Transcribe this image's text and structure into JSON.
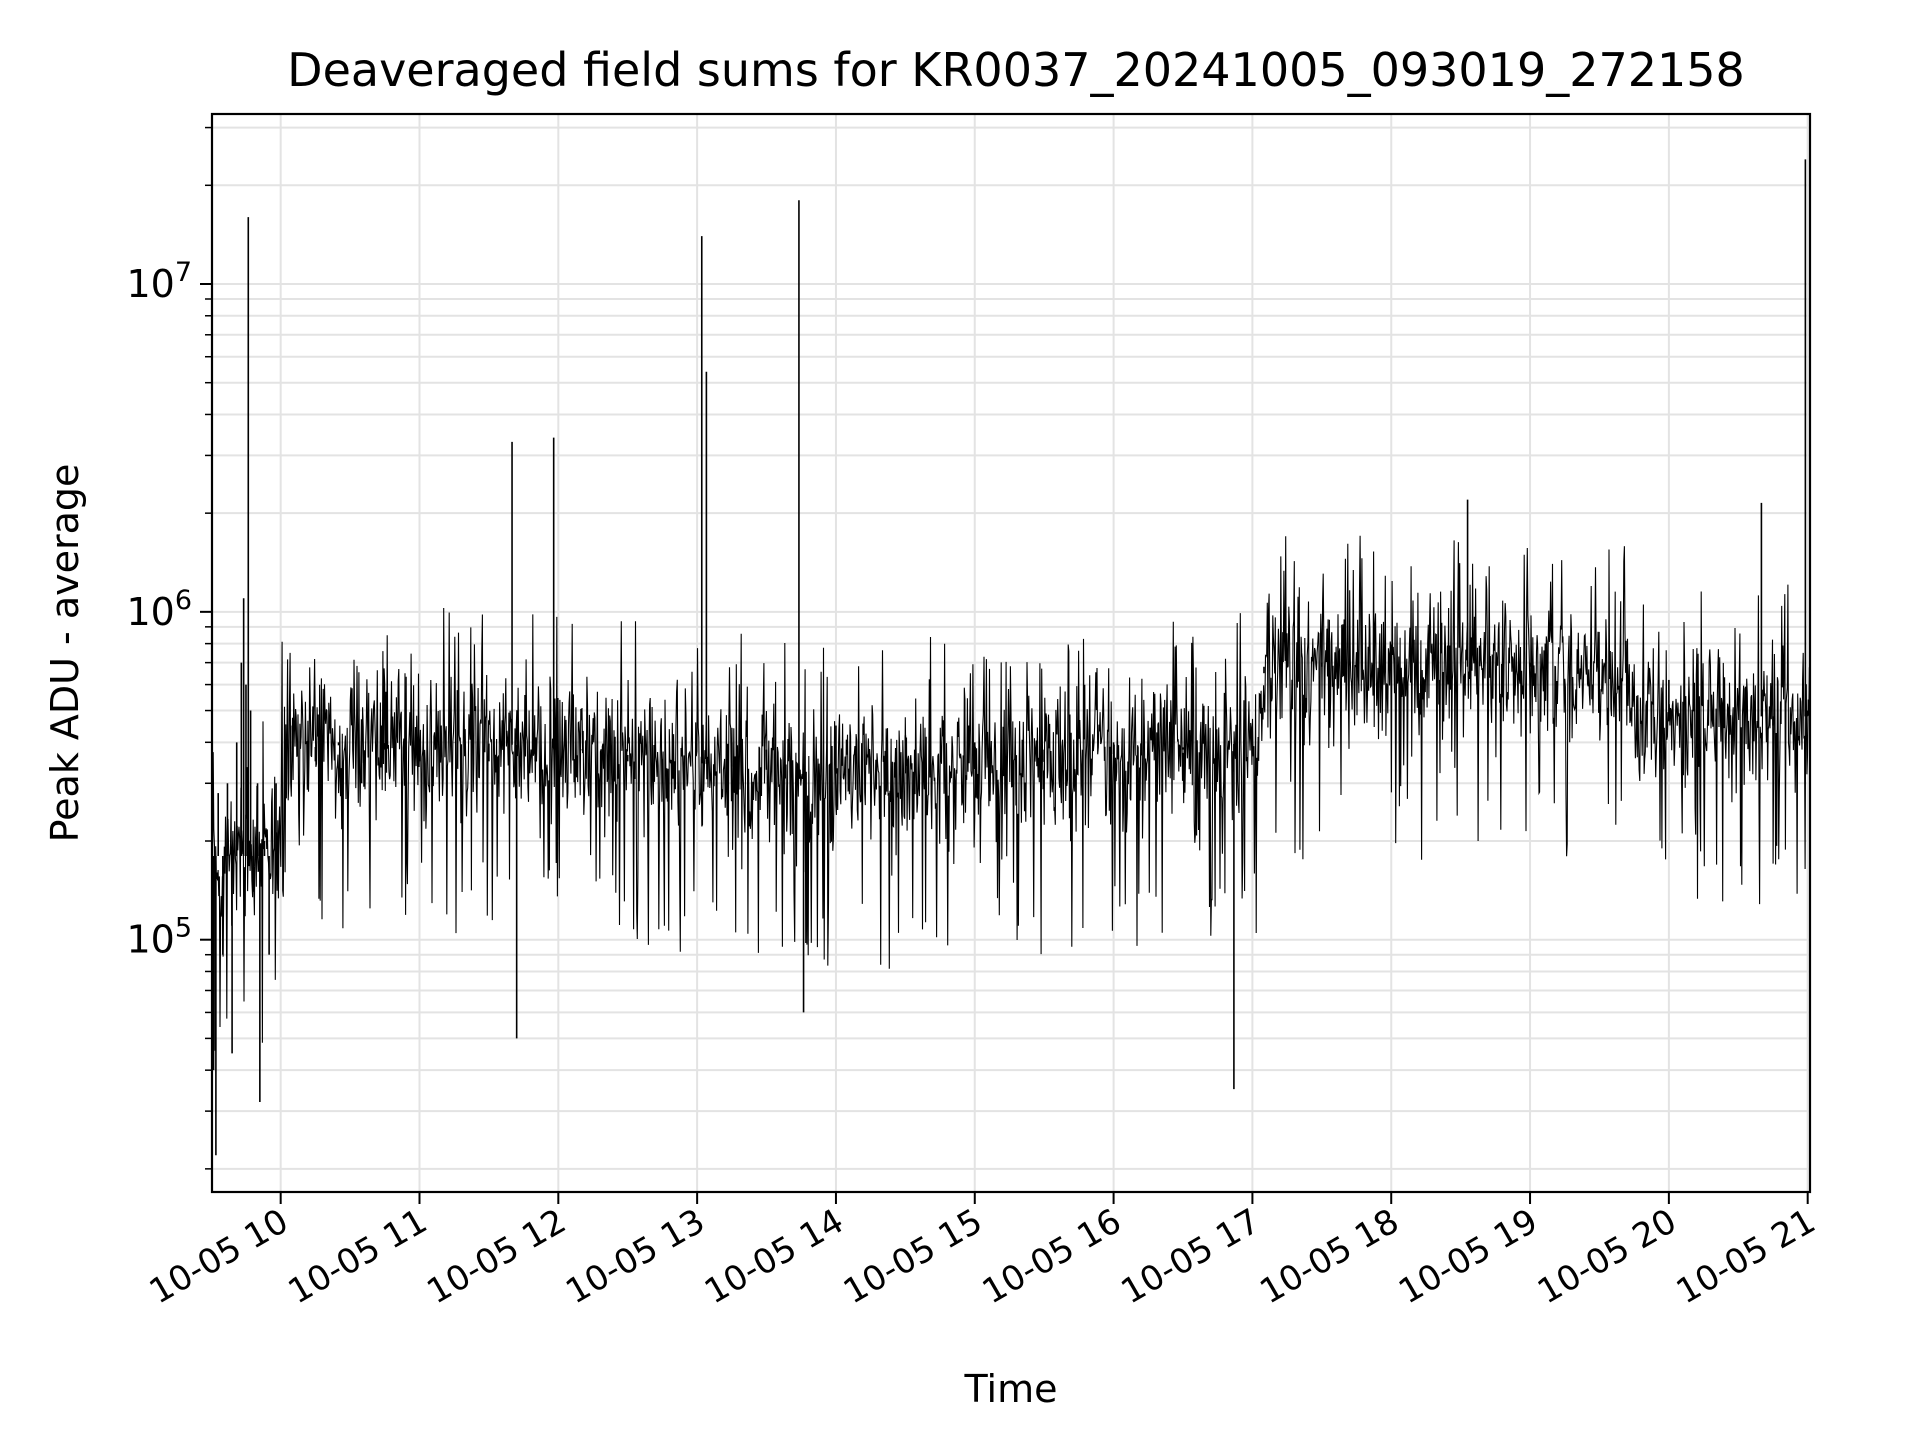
{
  "chart_data": {
    "type": "line",
    "title": "Deaveraged field sums for KR0037_20241005_093019_272158",
    "xlabel": "Time",
    "ylabel": "Peak ADU - average",
    "yscale": "log",
    "ylim": [
      17000,
      33000000
    ],
    "xlim": [
      "2024-10-05 09:30:19",
      "2024-10-05 21:01:00"
    ],
    "x_tick_labels": [
      "10-05 10",
      "10-05 11",
      "10-05 12",
      "10-05 13",
      "10-05 14",
      "10-05 15",
      "10-05 16",
      "10-05 17",
      "10-05 18",
      "10-05 19",
      "10-05 20",
      "10-05 21"
    ],
    "x_tick_times": [
      "2024-10-05 10:00",
      "2024-10-05 11:00",
      "2024-10-05 12:00",
      "2024-10-05 13:00",
      "2024-10-05 14:00",
      "2024-10-05 15:00",
      "2024-10-05 16:00",
      "2024-10-05 17:00",
      "2024-10-05 18:00",
      "2024-10-05 19:00",
      "2024-10-05 20:00",
      "2024-10-05 21:00"
    ],
    "y_ticks": [
      {
        "value": 100000,
        "base": "10",
        "exp": "5"
      },
      {
        "value": 1000000,
        "base": "10",
        "exp": "6"
      },
      {
        "value": 10000000,
        "base": "10",
        "exp": "7"
      }
    ],
    "grid": true,
    "line_color": "#000000",
    "series": [
      {
        "points": [
          [
            "2024-10-05 09:31",
            40000
          ],
          [
            "2024-10-05 09:32",
            22000
          ],
          [
            "2024-10-05 09:33",
            280000
          ],
          [
            "2024-10-05 09:35",
            90000
          ],
          [
            "2024-10-05 09:37",
            300000
          ],
          [
            "2024-10-05 09:39",
            45000
          ],
          [
            "2024-10-05 09:41",
            400000
          ],
          [
            "2024-10-05 09:43",
            700000
          ],
          [
            "2024-10-05 09:44",
            1100000
          ],
          [
            "2024-10-05 09:45",
            600000
          ],
          [
            "2024-10-05 09:46",
            16000000
          ],
          [
            "2024-10-05 09:47",
            500000
          ],
          [
            "2024-10-05 09:48",
            140000
          ],
          [
            "2024-10-05 09:50",
            300000
          ],
          [
            "2024-10-05 09:51",
            32000
          ],
          [
            "2024-10-05 09:53",
            200000
          ],
          [
            "2024-10-05 09:55",
            90000
          ],
          [
            "2024-10-05 09:58",
            300000
          ],
          [
            "2024-10-05 10:05",
            450000
          ],
          [
            "2024-10-05 10:15",
            350000
          ],
          [
            "2024-10-05 10:25",
            400000
          ],
          [
            "2024-10-05 10:35",
            300000
          ],
          [
            "2024-10-05 10:45",
            380000
          ],
          [
            "2024-10-05 11:00",
            350000
          ],
          [
            "2024-10-05 11:15",
            400000
          ],
          [
            "2024-10-05 11:30",
            350000
          ],
          [
            "2024-10-05 11:40",
            3300000
          ],
          [
            "2024-10-05 11:42",
            50000
          ],
          [
            "2024-10-05 11:50",
            350000
          ],
          [
            "2024-10-05 11:58",
            3400000
          ],
          [
            "2024-10-05 12:10",
            380000
          ],
          [
            "2024-10-05 12:30",
            350000
          ],
          [
            "2024-10-05 12:45",
            330000
          ],
          [
            "2024-10-05 13:02",
            14000000
          ],
          [
            "2024-10-05 13:04",
            5400000
          ],
          [
            "2024-10-05 13:15",
            400000
          ],
          [
            "2024-10-05 13:30",
            380000
          ],
          [
            "2024-10-05 13:44",
            18000000
          ],
          [
            "2024-10-05 13:46",
            60000
          ],
          [
            "2024-10-05 14:00",
            450000
          ],
          [
            "2024-10-05 14:30",
            420000
          ],
          [
            "2024-10-05 15:00",
            400000
          ],
          [
            "2024-10-05 15:30",
            380000
          ],
          [
            "2024-10-05 16:00",
            400000
          ],
          [
            "2024-10-05 16:30",
            380000
          ],
          [
            "2024-10-05 16:52",
            35000
          ],
          [
            "2024-10-05 17:05",
            650000
          ],
          [
            "2024-10-05 17:30",
            700000
          ],
          [
            "2024-10-05 18:00",
            680000
          ],
          [
            "2024-10-05 18:33",
            2200000
          ],
          [
            "2024-10-05 19:00",
            700000
          ],
          [
            "2024-10-05 19:30",
            680000
          ],
          [
            "2024-10-05 20:00",
            620000
          ],
          [
            "2024-10-05 20:40",
            2150000
          ],
          [
            "2024-10-05 20:45",
            450000
          ],
          [
            "2024-10-05 20:59",
            24000000
          ],
          [
            "2024-10-05 21:00",
            500000
          ]
        ]
      }
    ]
  }
}
